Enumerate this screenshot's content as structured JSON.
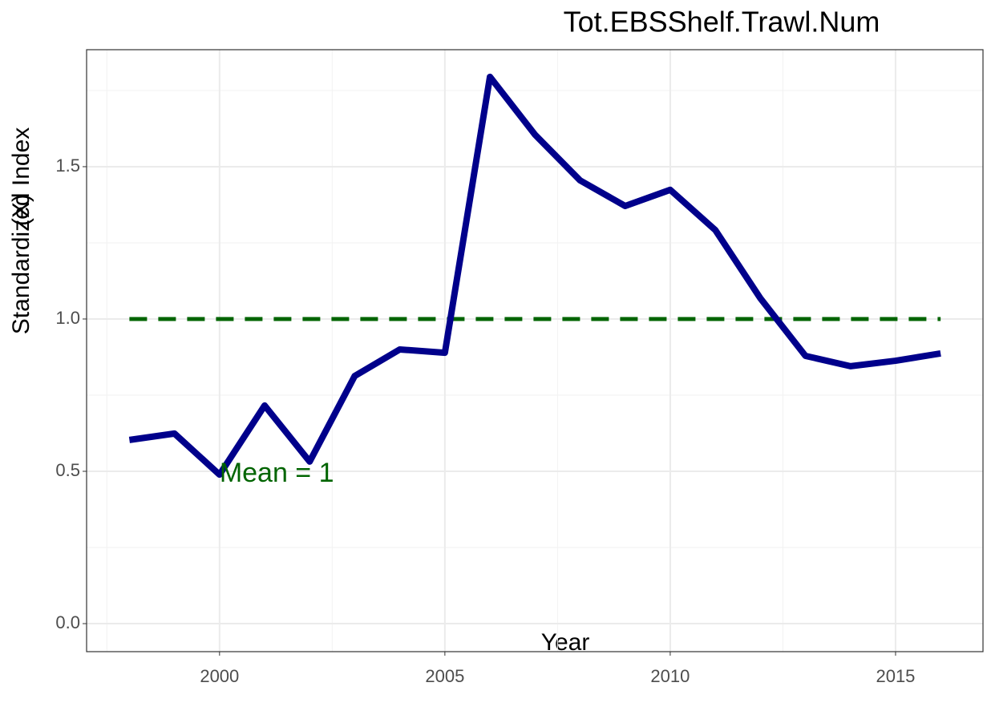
{
  "chart_data": {
    "type": "line",
    "title": "Tot.EBSShelf.Trawl.Num",
    "x_label": "Year",
    "y_label": "Standardized Index",
    "y_label_overlay": "(X)",
    "x": [
      1998,
      1999,
      2000,
      2001,
      2002,
      2003,
      2004,
      2005,
      2006,
      2007,
      2008,
      2009,
      2010,
      2011,
      2012,
      2013,
      2014,
      2015,
      2016
    ],
    "series": [
      {
        "name": "Tot.EBSShelf.Trawl.Num",
        "color": "#00008b",
        "values": [
          0.603,
          0.624,
          0.489,
          0.716,
          0.532,
          0.813,
          0.9,
          0.889,
          1.795,
          1.605,
          1.455,
          1.371,
          1.424,
          1.292,
          1.068,
          0.879,
          0.845,
          0.863,
          0.887
        ]
      }
    ],
    "reference_line": {
      "value": 1,
      "color": "#006400",
      "dashed": true
    },
    "annotation": {
      "text": "Mean = 1",
      "x": 2000,
      "y": 0.49,
      "color": "#006400"
    },
    "xlim": [
      1997.05,
      2016.94
    ],
    "ylim": [
      -0.092,
      1.884
    ],
    "xticks": [
      2000,
      2005,
      2010,
      2015
    ],
    "yticks": [
      {
        "value": 0,
        "label": "0.0"
      },
      {
        "value": 0.5,
        "label": "0.5"
      },
      {
        "value": 1,
        "label": "1.0"
      },
      {
        "value": 1.5,
        "label": "1.5"
      }
    ],
    "xminor": [
      1997.5,
      2002.5,
      2007.5,
      2012.5
    ],
    "yminor": [
      0.25,
      0.75,
      1.25,
      1.75
    ],
    "grid": true
  }
}
